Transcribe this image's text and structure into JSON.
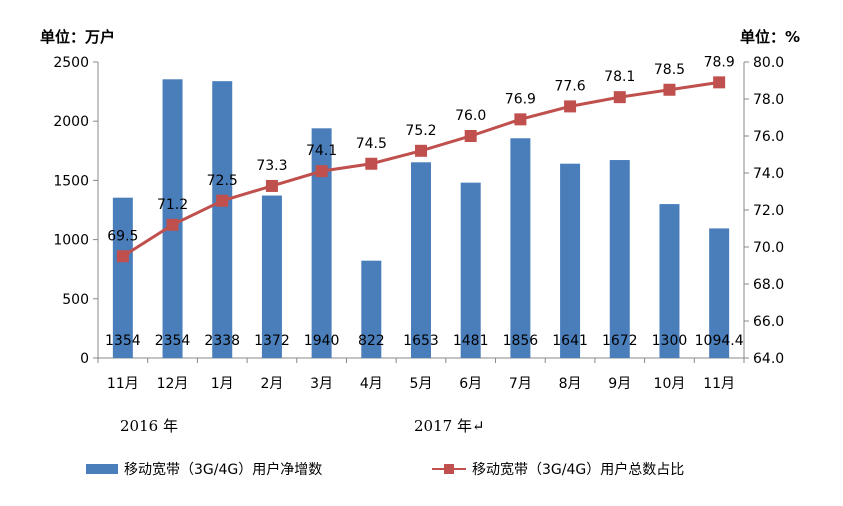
{
  "chart_data": {
    "type": "bar+line",
    "left_unit": "单位：万户",
    "right_unit": "单位：%",
    "categories": [
      "11月",
      "12月",
      "1月",
      "2月",
      "3月",
      "4月",
      "5月",
      "6月",
      "7月",
      "8月",
      "9月",
      "10月",
      "11月"
    ],
    "year_labels": [
      "2016 年",
      "2017 年↵"
    ],
    "y_left_ticks": [
      "0",
      "500",
      "1000",
      "1500",
      "2000",
      "2500"
    ],
    "y_right_ticks": [
      "64.0",
      "66.0",
      "68.0",
      "70.0",
      "72.0",
      "74.0",
      "76.0",
      "78.0",
      "80.0"
    ],
    "ylim_left": [
      0,
      2500
    ],
    "ylim_right": [
      64,
      80
    ],
    "series": [
      {
        "name": "移动宽带（3G/4G）用户净增数",
        "type": "bar",
        "axis": "left",
        "color": "#4a7ebb",
        "values": [
          1354,
          2354,
          2338,
          1372,
          1940,
          822,
          1653,
          1481,
          1856,
          1641,
          1672,
          1300,
          1094.4
        ],
        "labels": [
          "1354",
          "2354",
          "2338",
          "1372",
          "1940",
          "822",
          "1653",
          "1481",
          "1856",
          "1641",
          "1672",
          "1300",
          "1094.4"
        ]
      },
      {
        "name": "移动宽带（3G/4G）用户总数占比",
        "type": "line",
        "axis": "right",
        "color": "#c0504d",
        "values": [
          69.5,
          71.2,
          72.5,
          73.3,
          74.1,
          74.5,
          75.2,
          76.0,
          76.9,
          77.6,
          78.1,
          78.5,
          78.9
        ],
        "labels": [
          "69.5",
          "71.2",
          "72.5",
          "73.3",
          "74.1",
          "74.5",
          "75.2",
          "76.0",
          "76.9",
          "77.6",
          "78.1",
          "78.5",
          "78.9"
        ]
      }
    ]
  }
}
